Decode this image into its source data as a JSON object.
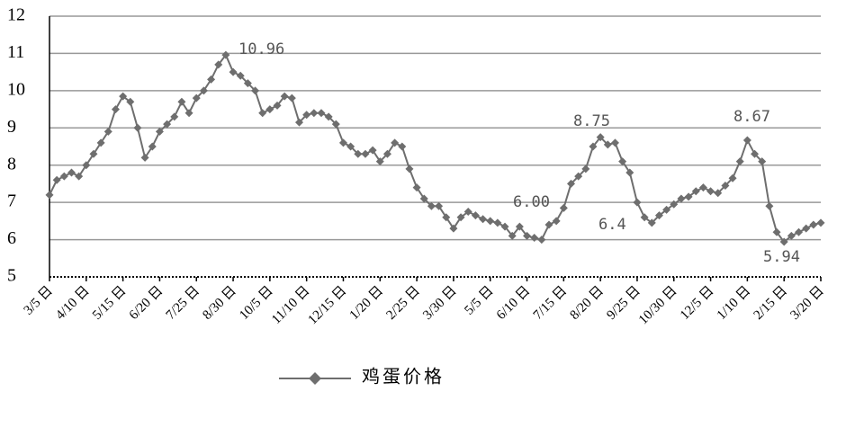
{
  "chart_data": {
    "type": "line",
    "categories": [
      "3/5 日",
      null,
      null,
      null,
      null,
      "4/10 日",
      null,
      null,
      null,
      null,
      "5/15 日",
      null,
      null,
      null,
      null,
      "6/20 日",
      null,
      null,
      null,
      null,
      "7/25 日",
      null,
      null,
      null,
      null,
      "8/30 日",
      null,
      null,
      null,
      null,
      "10/5 日",
      null,
      null,
      null,
      null,
      "11/10 日",
      null,
      null,
      null,
      null,
      "12/15 日",
      null,
      null,
      null,
      null,
      "1/20 日",
      null,
      null,
      null,
      null,
      "2/25 日",
      null,
      null,
      null,
      null,
      "3/30 日",
      null,
      null,
      null,
      null,
      "5/5 日",
      null,
      null,
      null,
      null,
      "6/10 日",
      null,
      null,
      null,
      null,
      "7/15 日",
      null,
      null,
      null,
      null,
      "8/20 日",
      null,
      null,
      null,
      null,
      "9/25 日",
      null,
      null,
      null,
      null,
      "10/30 日",
      null,
      null,
      null,
      null,
      "12/5 日",
      null,
      null,
      null,
      null,
      "1/10 日",
      null,
      null,
      null,
      null,
      "2/15 日",
      null,
      null,
      null,
      null,
      "3/20 日"
    ],
    "series": [
      {
        "name": "鸡蛋价格",
        "color": "#6e6e6e",
        "values": [
          7.2,
          7.6,
          7.7,
          7.8,
          7.7,
          8.0,
          8.3,
          8.6,
          8.9,
          9.5,
          9.85,
          9.7,
          9.0,
          8.2,
          8.5,
          8.9,
          9.1,
          9.3,
          9.7,
          9.4,
          9.8,
          10.0,
          10.3,
          10.7,
          10.96,
          10.5,
          10.4,
          10.2,
          10.0,
          9.4,
          9.5,
          9.6,
          9.85,
          9.8,
          9.15,
          9.35,
          9.4,
          9.4,
          9.3,
          9.1,
          8.6,
          8.5,
          8.3,
          8.3,
          8.4,
          8.1,
          8.3,
          8.6,
          8.5,
          7.9,
          7.4,
          7.1,
          6.9,
          6.9,
          6.6,
          6.3,
          6.6,
          6.75,
          6.65,
          6.55,
          6.5,
          6.45,
          6.35,
          6.1,
          6.35,
          6.1,
          6.05,
          6.0,
          6.4,
          6.5,
          6.85,
          7.5,
          7.7,
          7.9,
          8.5,
          8.75,
          8.55,
          8.6,
          8.1,
          7.8,
          7.0,
          6.6,
          6.45,
          6.65,
          6.8,
          6.95,
          7.1,
          7.15,
          7.3,
          7.4,
          7.3,
          7.25,
          7.45,
          7.65,
          8.1,
          8.67,
          8.3,
          8.1,
          6.9,
          6.2,
          5.94,
          6.1,
          6.2,
          6.3,
          6.4,
          6.45
        ]
      }
    ],
    "annotations": [
      "10.96",
      "6.00",
      "8.75",
      "6.4",
      "8.67",
      "5.94"
    ],
    "ylim": [
      5,
      12
    ],
    "yticks": [
      5,
      6,
      7,
      8,
      9,
      10,
      11,
      12
    ],
    "grid": true,
    "legend": "bottom"
  }
}
